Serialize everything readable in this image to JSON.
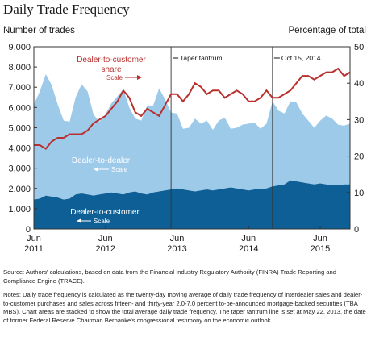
{
  "title": "Daily Trade Frequency",
  "left_axis_title": "Number of trades",
  "right_axis_title": "Percentage of total",
  "source": "Source: Authors' calculations, based on data from the Financial Industry Regulatory Authority (FINRA) Trade Reporting and Compliance Engine (TRACE).",
  "notes": "Notes: Daily trade frequency is calculated as the twenty-day moving average of daily trade frequency of interdealer sales and dealer-to-customer purchases and sales across fifteen- and thirty-year 2.0-7.0 percent to-be-announced mortgage-backed securities (TBA MBS). Chart areas are stacked to show the total average daily trade frequency. The taper tantrum line is set at May 22, 2013, the date of former Federal Reserve Chairman Bernanke's congressional testimony on the economic outlook.",
  "colors": {
    "dealer_to_customer": "#0d5f96",
    "dealer_to_dealer": "#9ecaea",
    "share": "#b8312f",
    "vline": "#333333"
  },
  "chart_data": {
    "type": "area",
    "x": [
      "2011-06",
      "2011-07",
      "2011-08",
      "2011-09",
      "2011-10",
      "2011-11",
      "2011-12",
      "2012-01",
      "2012-02",
      "2012-03",
      "2012-04",
      "2012-05",
      "2012-06",
      "2012-07",
      "2012-08",
      "2012-09",
      "2012-10",
      "2012-11",
      "2012-12",
      "2013-01",
      "2013-02",
      "2013-03",
      "2013-04",
      "2013-05",
      "2013-06",
      "2013-07",
      "2013-08",
      "2013-09",
      "2013-10",
      "2013-11",
      "2013-12",
      "2014-01",
      "2014-02",
      "2014-03",
      "2014-04",
      "2014-05",
      "2014-06",
      "2014-07",
      "2014-08",
      "2014-09",
      "2014-10",
      "2014-11",
      "2014-12",
      "2015-01",
      "2015-02",
      "2015-03",
      "2015-04",
      "2015-05",
      "2015-06",
      "2015-07",
      "2015-08",
      "2015-09",
      "2015-10",
      "2015-11"
    ],
    "series": [
      {
        "name": "Dealer-to-customer",
        "scale": "left",
        "values": [
          1450,
          1500,
          1650,
          1600,
          1550,
          1450,
          1500,
          1700,
          1750,
          1700,
          1650,
          1700,
          1750,
          1800,
          1750,
          1700,
          1800,
          1850,
          1750,
          1700,
          1800,
          1850,
          1900,
          1950,
          2000,
          1950,
          1900,
          1850,
          1900,
          1950,
          1900,
          1950,
          2000,
          2050,
          2000,
          1950,
          1900,
          1950,
          1950,
          2000,
          2100,
          2150,
          2200,
          2400,
          2350,
          2300,
          2250,
          2200,
          2250,
          2200,
          2150,
          2150,
          2200,
          2200
        ]
      },
      {
        "name": "Dealer-to-dealer",
        "scale": "left",
        "values": [
          4700,
          5300,
          6000,
          5500,
          4600,
          3900,
          3800,
          4800,
          5400,
          5100,
          4000,
          3600,
          3900,
          4400,
          4800,
          5200,
          4200,
          3600,
          3600,
          4400,
          4300,
          5100,
          4500,
          3800,
          3700,
          3000,
          3100,
          3600,
          3300,
          3400,
          3000,
          3400,
          3500,
          2900,
          3000,
          3200,
          3300,
          3300,
          3000,
          3200,
          4200,
          3700,
          3500,
          3900,
          3900,
          3400,
          3100,
          2800,
          3100,
          3400,
          3300,
          3000,
          2900,
          3000
        ]
      },
      {
        "name": "Dealer-to-customer share",
        "scale": "right",
        "values": [
          23,
          23,
          22,
          24,
          25,
          25,
          26,
          26,
          26,
          27,
          29,
          30,
          31,
          33,
          35,
          38,
          36,
          32,
          31,
          33,
          32,
          31,
          34,
          37,
          37,
          35,
          37,
          40,
          39,
          37,
          38,
          38,
          36,
          37,
          38,
          37,
          35,
          35,
          36,
          38,
          36,
          36,
          37,
          38,
          40,
          42,
          42,
          41,
          42,
          43,
          43,
          44,
          42,
          43
        ]
      }
    ],
    "left_axis": {
      "label": "Number of trades",
      "min": 0,
      "max": 9000,
      "ticks": [
        "0",
        "1,000",
        "2,000",
        "3,000",
        "4,000",
        "5,000",
        "6,000",
        "7,000",
        "8,000",
        "9,000"
      ]
    },
    "right_axis": {
      "label": "Percentage of total",
      "min": 0,
      "max": 50,
      "ticks": [
        "0",
        "10",
        "20",
        "30",
        "40",
        "50"
      ]
    },
    "x_ticks": [
      {
        "line1": "Jun",
        "line2": "2011",
        "at": "2011-06"
      },
      {
        "line1": "Jun",
        "line2": "2012",
        "at": "2012-06"
      },
      {
        "line1": "Jun",
        "line2": "2013",
        "at": "2013-06"
      },
      {
        "line1": "Jun",
        "line2": "2014",
        "at": "2014-06"
      },
      {
        "line1": "Jun",
        "line2": "2015",
        "at": "2015-06"
      }
    ],
    "markers": [
      {
        "label": "Taper tantrum",
        "at": "2013-05"
      },
      {
        "label": "Oct 15, 2014",
        "at": "2014-10"
      }
    ],
    "annotations": {
      "share_label": [
        "Dealer-to-customer",
        "share"
      ],
      "share_scale": "Scale",
      "dealer_label": "Dealer-to-dealer",
      "dealer_scale": "Scale",
      "customer_label": "Dealer-to-customer",
      "customer_scale": "Scale"
    },
    "grid": false,
    "legend": "inline annotations"
  }
}
